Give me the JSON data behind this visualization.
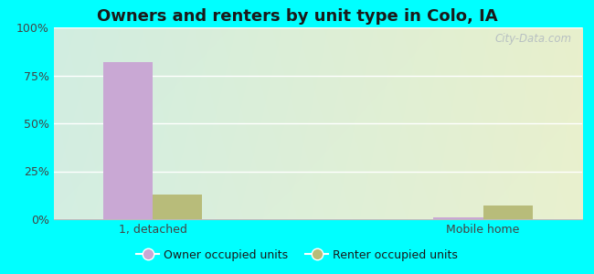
{
  "title": "Owners and renters by unit type in Colo, IA",
  "categories": [
    "1, detached",
    "Mobile home"
  ],
  "owner_values": [
    82,
    1
  ],
  "renter_values": [
    13,
    7
  ],
  "owner_color": "#c9a8d4",
  "renter_color": "#b8bc7a",
  "bar_width": 0.3,
  "ylim": [
    0,
    100
  ],
  "yticks": [
    0,
    25,
    50,
    75,
    100
  ],
  "ytick_labels": [
    "0%",
    "25%",
    "50%",
    "75%",
    "100%"
  ],
  "outer_bg": "#00ffff",
  "title_fontsize": 13,
  "legend_labels": [
    "Owner occupied units",
    "Renter occupied units"
  ],
  "watermark": "City-Data.com",
  "tick_color": "#444444",
  "tick_fontsize": 9,
  "x_positions": [
    0.5,
    2.5
  ],
  "xlim": [
    -0.1,
    3.1
  ]
}
